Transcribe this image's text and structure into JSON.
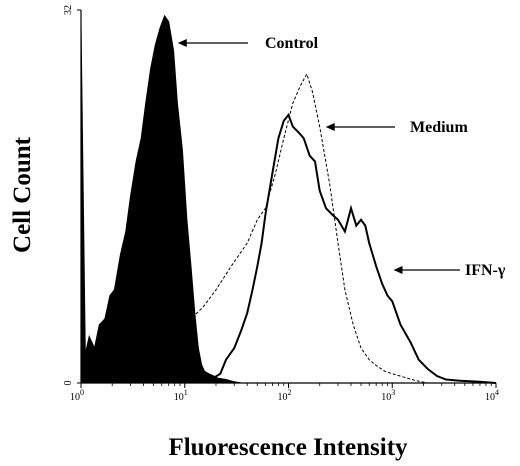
{
  "chart_data": {
    "type": "line",
    "title": "",
    "xlabel": "Fluorescence Intensity",
    "ylabel": "Cell Count",
    "x_scale": "log",
    "xlim": [
      1,
      10000
    ],
    "ylim": [
      0,
      32
    ],
    "x_ticks": [
      {
        "value": 1,
        "base": "10",
        "exp": "0"
      },
      {
        "value": 10,
        "base": "10",
        "exp": "1"
      },
      {
        "value": 100,
        "base": "10",
        "exp": "2"
      },
      {
        "value": 1000,
        "base": "10",
        "exp": "3"
      },
      {
        "value": 10000,
        "base": "10",
        "exp": "4"
      }
    ],
    "y_ticks": [
      {
        "value": 0,
        "label": "0"
      },
      {
        "value": 32,
        "label": "32"
      }
    ],
    "grid": false,
    "series": [
      {
        "name": "Control",
        "style": "filled",
        "color": "#000000",
        "x": [
          1.0,
          1.1,
          1.2,
          1.35,
          1.5,
          1.7,
          1.9,
          2.1,
          2.4,
          2.7,
          3.0,
          3.4,
          3.8,
          4.2,
          4.7,
          5.2,
          5.8,
          6.4,
          7.0,
          7.8,
          8.5,
          9.5,
          10.5,
          11.5,
          12.5,
          13.5,
          14.5,
          15.5,
          17,
          19,
          21,
          25,
          30,
          35
        ],
        "y": [
          31.0,
          2.5,
          4.0,
          3.0,
          5.0,
          5.5,
          7.5,
          8.0,
          11.0,
          13.0,
          16.0,
          19.0,
          21.0,
          24.0,
          27.0,
          29.0,
          30.5,
          31.5,
          31.0,
          28.5,
          24.0,
          20.0,
          14.0,
          10.0,
          6.0,
          3.0,
          1.6,
          1.0,
          0.8,
          0.6,
          0.4,
          0.3,
          0.1,
          0.0
        ]
      },
      {
        "name": "Medium",
        "style": "dashed",
        "color": "#000000",
        "x": [
          1.0,
          2.0,
          3.0,
          4.5,
          6.5,
          10,
          15,
          20,
          28,
          40,
          50,
          60,
          75,
          90,
          110,
          130,
          150,
          170,
          200,
          250,
          300,
          350,
          420,
          500,
          600,
          700,
          850,
          1000,
          1300,
          1700,
          2200
        ],
        "y": [
          0.0,
          1.0,
          2.0,
          3.0,
          4.0,
          5.0,
          6.5,
          8.0,
          10.0,
          12.0,
          14.0,
          15.0,
          18.0,
          21.0,
          24.0,
          25.5,
          26.5,
          25.0,
          22.0,
          17.0,
          12.0,
          8.0,
          5.0,
          3.0,
          2.0,
          1.5,
          1.0,
          0.8,
          0.5,
          0.2,
          0.0
        ]
      },
      {
        "name": "IFN-γ",
        "style": "solid",
        "color": "#000000",
        "x": [
          18,
          22,
          25,
          30,
          35,
          40,
          45,
          50,
          55,
          60,
          70,
          80,
          90,
          100,
          110,
          125,
          140,
          160,
          180,
          200,
          230,
          260,
          300,
          350,
          400,
          450,
          500,
          550,
          600,
          700,
          800,
          900,
          1000,
          1200,
          1500,
          1800,
          2200,
          2700,
          3300,
          4500,
          7000,
          10000
        ],
        "y": [
          0.3,
          0.8,
          2.0,
          3.0,
          4.5,
          6.0,
          8.0,
          10.0,
          12.0,
          14.5,
          18.0,
          21.0,
          22.5,
          23.0,
          22.0,
          21.5,
          21.0,
          19.5,
          19.0,
          16.5,
          15.0,
          14.5,
          14.0,
          13.0,
          15.0,
          13.5,
          14.0,
          13.5,
          12.0,
          10.0,
          8.5,
          7.5,
          7.0,
          5.0,
          3.5,
          2.0,
          1.2,
          0.6,
          0.3,
          0.2,
          0.1,
          0.0
        ]
      }
    ],
    "annotations": [
      {
        "text": "Control",
        "series": "Control",
        "anchor_x": 7.5,
        "anchor_y": 31.0
      },
      {
        "text": "Medium",
        "series": "Medium",
        "anchor_x": 200,
        "anchor_y": 22.0
      },
      {
        "text": "IFN-γ",
        "series": "IFN-γ",
        "anchor_x": 900,
        "anchor_y": 9.5
      }
    ]
  }
}
